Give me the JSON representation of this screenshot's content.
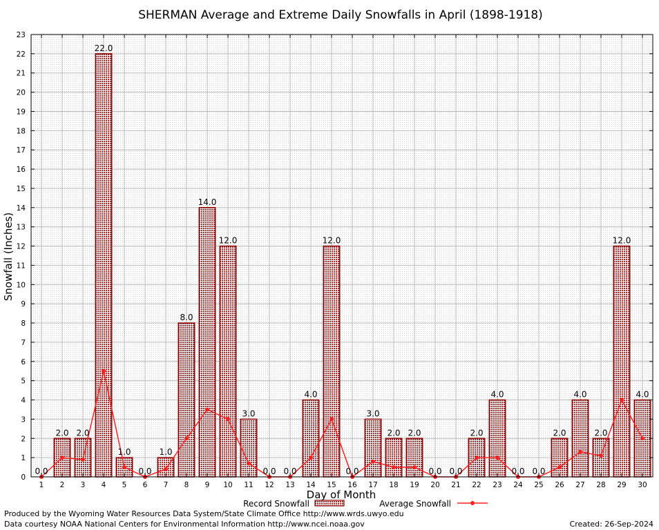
{
  "chart_data": {
    "type": "bar",
    "title": "SHERMAN Average and Extreme Daily Snowfalls in April (1898-1918)",
    "xlabel": "Day of Month",
    "ylabel": "Snowfall (Inches)",
    "ylim": [
      0,
      23
    ],
    "yticks": [
      "0",
      "1",
      "2",
      "3",
      "4",
      "5",
      "6",
      "7",
      "8",
      "9",
      "10",
      "11",
      "12",
      "13",
      "14",
      "15",
      "16",
      "17",
      "18",
      "19",
      "20",
      "21",
      "22",
      "23"
    ],
    "categories": [
      "1",
      "2",
      "3",
      "4",
      "5",
      "6",
      "7",
      "8",
      "9",
      "10",
      "11",
      "12",
      "13",
      "14",
      "15",
      "16",
      "17",
      "18",
      "19",
      "20",
      "21",
      "22",
      "23",
      "24",
      "25",
      "26",
      "27",
      "28",
      "29",
      "30"
    ],
    "series": [
      {
        "name": "Record Snowfall",
        "kind": "bar",
        "values": [
          0,
          2,
          2,
          22,
          1,
          0,
          1,
          8,
          14,
          12,
          3,
          0,
          0,
          4,
          12,
          0,
          3,
          2,
          2,
          0,
          0,
          2,
          4,
          0,
          0,
          2,
          4,
          2,
          12,
          4
        ],
        "labels": [
          "0.0",
          "2.0",
          "2.0",
          "22.0",
          "1.0",
          "0.0",
          "1.0",
          "8.0",
          "14.0",
          "12.0",
          "3.0",
          "0.0",
          "0.0",
          "4.0",
          "12.0",
          "0.0",
          "3.0",
          "2.0",
          "2.0",
          "0.0",
          "0.0",
          "2.0",
          "4.0",
          "0.0",
          "0.0",
          "2.0",
          "4.0",
          "2.0",
          "12.0",
          "4.0"
        ]
      },
      {
        "name": "Average Snowfall",
        "kind": "line",
        "values": [
          0,
          1,
          0.9,
          5.5,
          0.5,
          0,
          0.4,
          2,
          3.5,
          3,
          0.7,
          0,
          0,
          1,
          3,
          0,
          0.8,
          0.5,
          0.5,
          0,
          0,
          1,
          1,
          0,
          0,
          0.5,
          1.3,
          1.1,
          4,
          2
        ]
      }
    ],
    "grid": true,
    "legend_position": "bottom",
    "colors": {
      "bar_edge": "#8b0000",
      "bar_fill": "#b05050",
      "line": "#ff2020",
      "grid": "#bbbbbb"
    }
  },
  "footer": {
    "credit_line1": "Produced by the Wyoming Water Resources Data System/State Climate Office http://www.wrds.uwyo.edu",
    "credit_line2": "Data courtesy NOAA National Centers for Environmental Information http://www.ncei.noaa.gov",
    "created": "Created:  26-Sep-2024"
  }
}
